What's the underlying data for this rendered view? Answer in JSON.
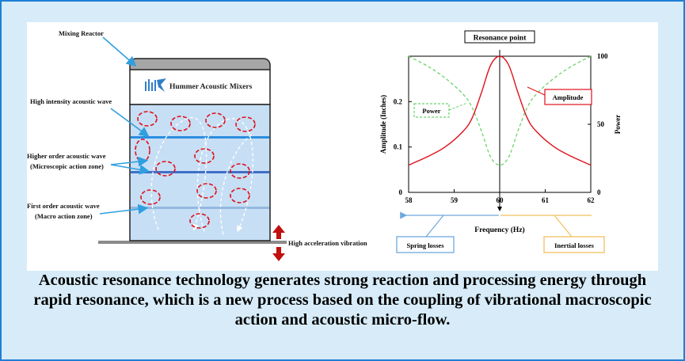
{
  "reactor": {
    "mixing_reactor_label": "Mixing Reactor",
    "brand_label": "Hummer Acoustic Mixers",
    "high_intensity_label": "High intensity acoustic wave",
    "higher_order_label_1": "Higher order acoustic wave",
    "higher_order_label_2": "(Microscopic action zone)",
    "first_order_label_1": "First order acoustic wave",
    "first_order_label_2": "(Macro action zone)",
    "vibration_label": "High acceleration vibration"
  },
  "chart_data": {
    "type": "line",
    "title": "Resonance point",
    "xlabel": "Frequency (Hz)",
    "ylabel_left": "Amplitude (Inches)",
    "ylabel_right": "Power",
    "xlim": [
      58,
      62
    ],
    "ylim_left": [
      0,
      0.3
    ],
    "ylim_right": [
      0,
      100
    ],
    "x_ticks": [
      "58",
      "59",
      "60",
      "61",
      "62"
    ],
    "y_left_ticks": [
      "0",
      "0.1",
      "0.2"
    ],
    "y_right_ticks": [
      "0",
      "50",
      "100"
    ],
    "series": [
      {
        "name": "Amplitude",
        "axis": "left",
        "color": "#e0101a",
        "x": [
          58,
          58.4,
          58.8,
          59.2,
          59.4,
          59.6,
          59.8,
          60.0,
          60.2,
          60.4,
          60.6,
          60.8,
          61.2,
          61.6,
          62
        ],
        "y": [
          0.06,
          0.078,
          0.1,
          0.135,
          0.165,
          0.22,
          0.28,
          0.3,
          0.28,
          0.22,
          0.165,
          0.135,
          0.1,
          0.078,
          0.06
        ]
      },
      {
        "name": "Power",
        "axis": "right",
        "color": "#6ad46a",
        "x": [
          58,
          58.4,
          58.8,
          59.2,
          59.4,
          59.6,
          59.8,
          60.0,
          60.2,
          60.4,
          60.6,
          60.8,
          61.2,
          61.6,
          62
        ],
        "y": [
          100,
          93,
          84,
          72,
          62,
          45,
          26,
          20,
          26,
          45,
          62,
          72,
          84,
          93,
          100
        ]
      }
    ],
    "annotations": {
      "spring_losses": "Spring losses",
      "inertial_losses": "Inertial losses"
    },
    "colors": {
      "spring": "#6fa8dc",
      "inertial": "#f0c060"
    }
  },
  "caption": "Acoustic resonance technology generates strong reaction and processing energy through rapid resonance, which is a new process based on the coupling of vibrational macroscopic action and acoustic micro-flow."
}
